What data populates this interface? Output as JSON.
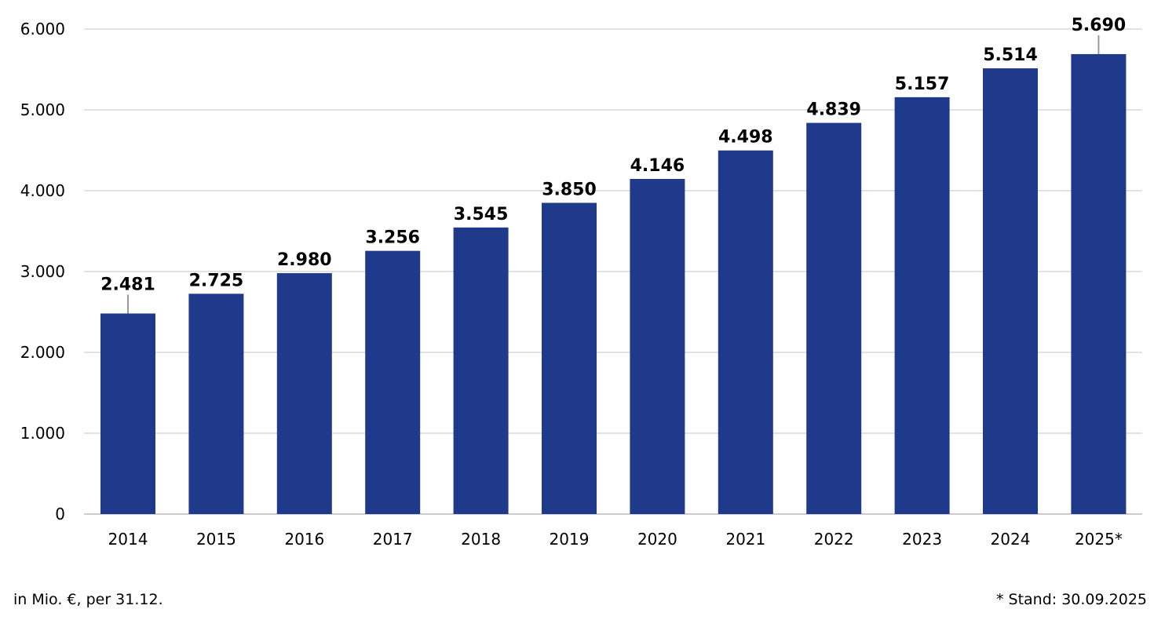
{
  "chart_data": {
    "type": "bar",
    "categories": [
      "2014",
      "2015",
      "2016",
      "2017",
      "2018",
      "2019",
      "2020",
      "2021",
      "2022",
      "2023",
      "2024",
      "2025*"
    ],
    "values": [
      2481,
      2725,
      2980,
      3256,
      3545,
      3850,
      4146,
      4498,
      4839,
      5157,
      5514,
      5690
    ],
    "data_labels": [
      "2.481",
      "2.725",
      "2.980",
      "3.256",
      "3.545",
      "3.850",
      "4.146",
      "4.498",
      "4.839",
      "5.157",
      "5.514",
      "5.690"
    ],
    "ylim": [
      0,
      6000
    ],
    "yticks": [
      0,
      1000,
      2000,
      3000,
      4000,
      5000,
      6000
    ],
    "ytick_labels": [
      "0",
      "1.000",
      "2.000",
      "3.000",
      "4.000",
      "5.000",
      "6.000"
    ],
    "grid": true,
    "bar_color": "#1F3A8A",
    "title": "",
    "xlabel": "",
    "ylabel": ""
  },
  "footnotes": {
    "unit": "in Mio. €, per 31.12.",
    "status": "* Stand: 30.09.2025"
  }
}
